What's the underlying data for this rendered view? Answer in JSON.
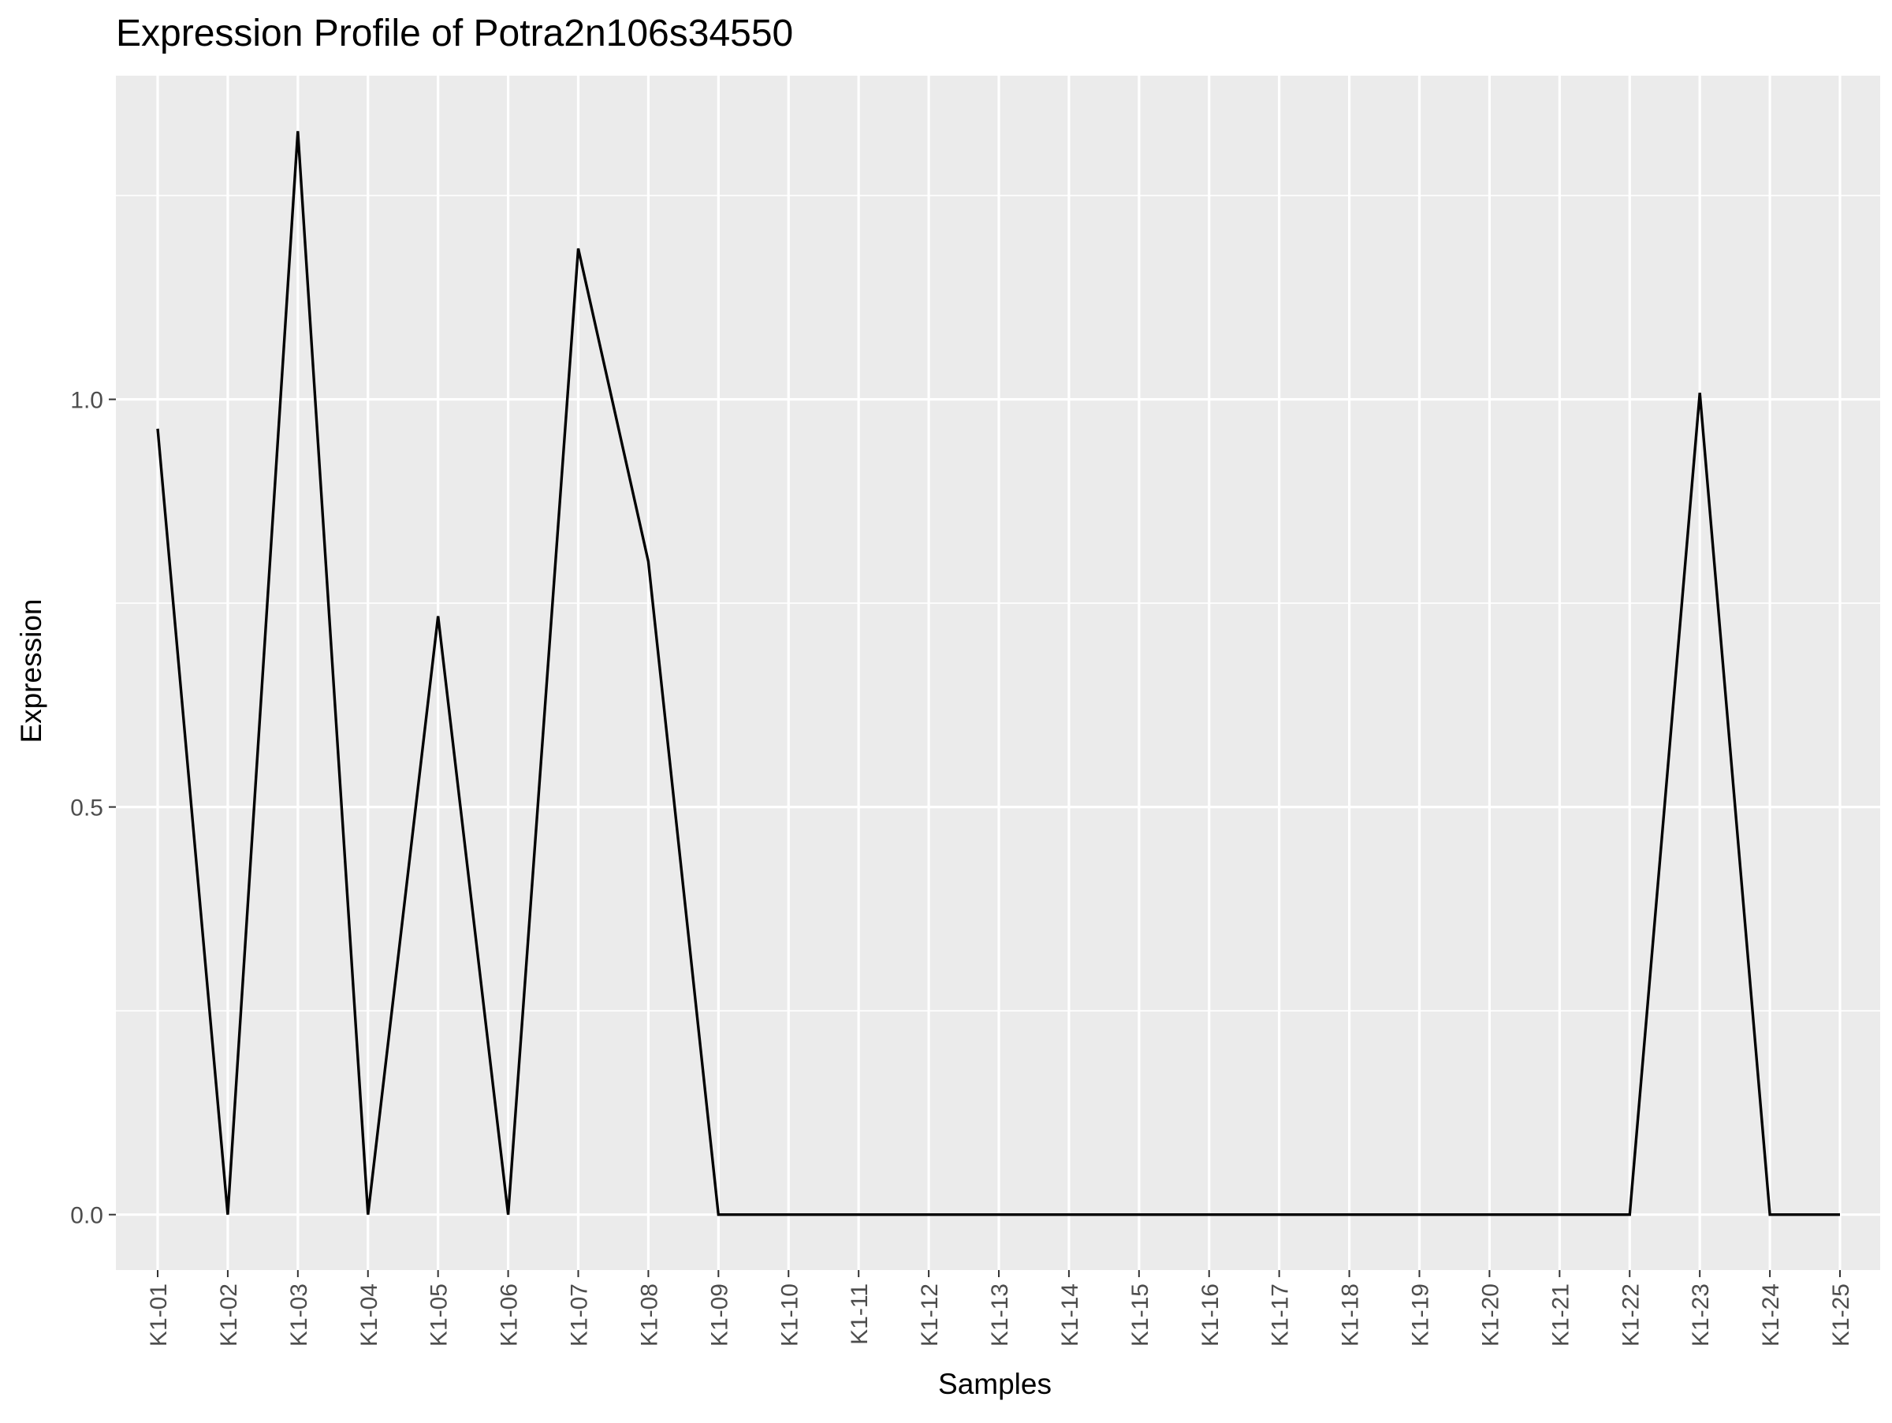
{
  "chart_data": {
    "type": "line",
    "title": "Expression Profile of Potra2n106s34550",
    "xlabel": "Samples",
    "ylabel": "Expression",
    "categories": [
      "K1-01",
      "K1-02",
      "K1-03",
      "K1-04",
      "K1-05",
      "K1-06",
      "K1-07",
      "K1-08",
      "K1-09",
      "K1-10",
      "K1-11",
      "K1-12",
      "K1-13",
      "K1-14",
      "K1-15",
      "K1-16",
      "K1-17",
      "K1-18",
      "K1-19",
      "K1-20",
      "K1-21",
      "K1-22",
      "K1-23",
      "K1-24",
      "K1-25"
    ],
    "series": [
      {
        "values": [
          0.964,
          0.0,
          1.329,
          0.0,
          0.734,
          0.0,
          1.185,
          0.801,
          0.0,
          0.0,
          0.0,
          0.0,
          0.0,
          0.0,
          0.0,
          0.0,
          0.0,
          0.0,
          0.0,
          0.0,
          0.0,
          0.0,
          1.008,
          0.0,
          0.0
        ]
      }
    ],
    "ylim": [
      -0.068,
      1.397
    ],
    "yticks": [
      0.0,
      0.5,
      1.0
    ],
    "ytick_labels": [
      "0.0",
      "0.5",
      "1.0"
    ],
    "grid": true,
    "colors": {
      "panel": "#ebebeb",
      "grid": "#ffffff",
      "line": "#000000",
      "axis_text": "#4d4d4d",
      "title_text": "#000000"
    }
  }
}
